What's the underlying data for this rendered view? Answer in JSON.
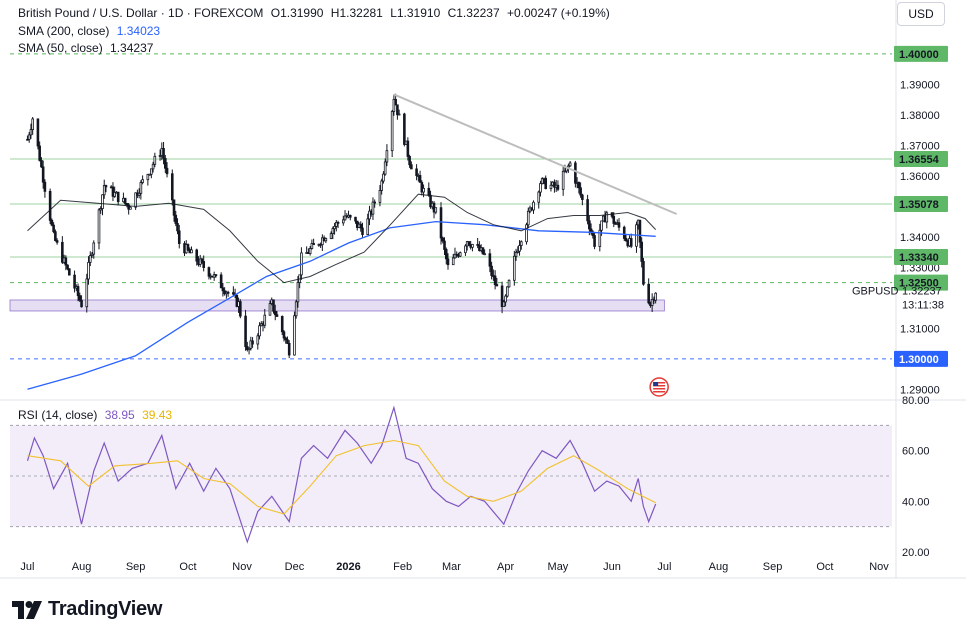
{
  "header": {
    "symbol": "British Pound / U.S. Dollar · 1D · FOREXCOM",
    "open": "O1.31990",
    "high": "H1.32281",
    "low": "L1.31910",
    "close": "C1.32237",
    "change": "+0.00247 (+0.19%)",
    "sma200_label": "SMA (200, close)",
    "sma200_value": "1.34023",
    "sma50_label": "SMA (50, close)",
    "sma50_value": "1.34237",
    "rsi_label": "RSI (14, close)",
    "rsi_value": "38.95",
    "rsi_ma_value": "39.43"
  },
  "currency_button": "USD",
  "brand": "TradingView",
  "colors": {
    "up": "#131722",
    "down": "#131722",
    "sma200": "#2962ff",
    "sma50": "#131722",
    "rsi": "#7e57c2",
    "rsi_ma": "#f2c12e",
    "support_zone": "#d1c4e9",
    "support_line": "#4caf50",
    "last_price_tag": "#131722",
    "level_1_30": "#2962ff",
    "trendline": "#bdbdbd"
  },
  "icons": [
    "us-flag-icon",
    "tradingview-logo-icon"
  ],
  "chart_data": [
    {
      "type": "candlestick",
      "title": "British Pound / U.S. Dollar · 1D · FOREXCOM",
      "ylim": [
        1.2865,
        1.4085
      ],
      "x_months": [
        "Jul",
        "Aug",
        "Sep",
        "Oct",
        "Nov",
        "Dec",
        "2026",
        "Feb",
        "Mar",
        "Apr",
        "May",
        "Jun",
        "Jul",
        "Aug",
        "Sep",
        "Oct",
        "Nov"
      ],
      "y_ticks": [
        "1.39000",
        "1.38000",
        "1.37000",
        "1.36000",
        "1.34000",
        "1.33000",
        "1.31000",
        "1.29000"
      ],
      "horizontal_levels": [
        {
          "label": "1.40000",
          "value": 1.4,
          "style": "dashed",
          "color": "#4caf50"
        },
        {
          "label": "1.36554",
          "value": 1.36554,
          "style": "solid",
          "color": "#4caf50"
        },
        {
          "label": "1.35078",
          "value": 1.35078,
          "style": "solid",
          "color": "#4caf50"
        },
        {
          "label": "1.33340",
          "value": 1.3334,
          "style": "solid",
          "color": "#4caf50"
        },
        {
          "label": "1.32500",
          "value": 1.325,
          "style": "dashed",
          "color": "#4caf50"
        },
        {
          "label": "1.30000",
          "value": 1.3,
          "style": "dashed",
          "color": "#2962ff"
        }
      ],
      "support_zone": [
        1.3157,
        1.3193
      ],
      "last_price": {
        "symbol": "GBPUSD",
        "value": "1.32237",
        "countdown": "13:11:38"
      },
      "trendline": {
        "from": {
          "date": "2026-01-27",
          "value": 1.3867
        },
        "to": {
          "date": "2026-07-08",
          "value": 1.3475
        }
      },
      "key_points": [
        {
          "date": "2025-07-01",
          "close": 1.372
        },
        {
          "date": "2025-07-04",
          "close": 1.379
        },
        {
          "date": "2025-07-16",
          "close": 1.34
        },
        {
          "date": "2025-08-01",
          "close": 1.318
        },
        {
          "date": "2025-08-14",
          "close": 1.357
        },
        {
          "date": "2025-08-28",
          "close": 1.35
        },
        {
          "date": "2025-09-16",
          "close": 1.369
        },
        {
          "date": "2025-09-26",
          "close": 1.338
        },
        {
          "date": "2025-10-14",
          "close": 1.328
        },
        {
          "date": "2025-10-30",
          "close": 1.318
        },
        {
          "date": "2025-11-04",
          "close": 1.302
        },
        {
          "date": "2025-11-18",
          "close": 1.318
        },
        {
          "date": "2025-11-28",
          "close": 1.303
        },
        {
          "date": "2025-12-05",
          "close": 1.333
        },
        {
          "date": "2025-12-16",
          "close": 1.339
        },
        {
          "date": "2025-12-30",
          "close": 1.347
        },
        {
          "date": "2026-01-10",
          "close": 1.342
        },
        {
          "date": "2026-01-20",
          "close": 1.358
        },
        {
          "date": "2026-01-27",
          "close": 1.386
        },
        {
          "date": "2026-02-05",
          "close": 1.365
        },
        {
          "date": "2026-02-12",
          "close": 1.356
        },
        {
          "date": "2026-02-20",
          "close": 1.348
        },
        {
          "date": "2026-02-27",
          "close": 1.33
        },
        {
          "date": "2026-03-10",
          "close": 1.339
        },
        {
          "date": "2026-03-20",
          "close": 1.334
        },
        {
          "date": "2026-03-31",
          "close": 1.317
        },
        {
          "date": "2026-04-07",
          "close": 1.335
        },
        {
          "date": "2026-04-14",
          "close": 1.347
        },
        {
          "date": "2026-04-21",
          "close": 1.358
        },
        {
          "date": "2026-04-30",
          "close": 1.356
        },
        {
          "date": "2026-05-08",
          "close": 1.364
        },
        {
          "date": "2026-05-15",
          "close": 1.352
        },
        {
          "date": "2026-05-22",
          "close": 1.338
        },
        {
          "date": "2026-05-29",
          "close": 1.348
        },
        {
          "date": "2026-06-05",
          "close": 1.343
        },
        {
          "date": "2026-06-12",
          "close": 1.337
        },
        {
          "date": "2026-06-16",
          "close": 1.344
        },
        {
          "date": "2026-06-19",
          "close": 1.325
        },
        {
          "date": "2026-06-23",
          "close": 1.318
        },
        {
          "date": "2026-06-26",
          "close": 1.3224
        }
      ],
      "sma50": [
        {
          "date": "2025-07-01",
          "value": 1.342
        },
        {
          "date": "2025-07-20",
          "value": 1.352
        },
        {
          "date": "2025-08-10",
          "value": 1.351
        },
        {
          "date": "2025-09-01",
          "value": 1.35
        },
        {
          "date": "2025-09-20",
          "value": 1.351
        },
        {
          "date": "2025-10-10",
          "value": 1.349
        },
        {
          "date": "2025-10-25",
          "value": 1.342
        },
        {
          "date": "2025-11-10",
          "value": 1.332
        },
        {
          "date": "2025-11-25",
          "value": 1.325
        },
        {
          "date": "2025-12-10",
          "value": 1.327
        },
        {
          "date": "2025-12-25",
          "value": 1.331
        },
        {
          "date": "2026-01-10",
          "value": 1.335
        },
        {
          "date": "2026-01-25",
          "value": 1.344
        },
        {
          "date": "2026-02-10",
          "value": 1.354
        },
        {
          "date": "2026-02-25",
          "value": 1.353
        },
        {
          "date": "2026-03-10",
          "value": 1.348
        },
        {
          "date": "2026-03-25",
          "value": 1.344
        },
        {
          "date": "2026-04-10",
          "value": 1.342
        },
        {
          "date": "2026-04-25",
          "value": 1.346
        },
        {
          "date": "2026-05-10",
          "value": 1.347
        },
        {
          "date": "2026-05-25",
          "value": 1.347
        },
        {
          "date": "2026-06-10",
          "value": 1.348
        },
        {
          "date": "2026-06-20",
          "value": 1.346
        },
        {
          "date": "2026-06-26",
          "value": 1.3424
        }
      ],
      "sma200": [
        {
          "date": "2025-07-01",
          "value": 1.29
        },
        {
          "date": "2025-08-01",
          "value": 1.295
        },
        {
          "date": "2025-09-01",
          "value": 1.301
        },
        {
          "date": "2025-10-01",
          "value": 1.312
        },
        {
          "date": "2025-10-25",
          "value": 1.32
        },
        {
          "date": "2025-11-15",
          "value": 1.327
        },
        {
          "date": "2025-12-10",
          "value": 1.332
        },
        {
          "date": "2026-01-01",
          "value": 1.338
        },
        {
          "date": "2026-01-25",
          "value": 1.343
        },
        {
          "date": "2026-02-20",
          "value": 1.345
        },
        {
          "date": "2026-03-20",
          "value": 1.344
        },
        {
          "date": "2026-04-20",
          "value": 1.342
        },
        {
          "date": "2026-05-20",
          "value": 1.3415
        },
        {
          "date": "2026-06-26",
          "value": 1.3402
        }
      ]
    },
    {
      "type": "line",
      "title": "RSI (14, close)",
      "ylim": [
        20,
        80
      ],
      "y_ticks": [
        "80.00",
        "60.00",
        "40.00",
        "20.00"
      ],
      "band": [
        30,
        70
      ],
      "midline": 50,
      "series": [
        {
          "name": "RSI (14, close)",
          "color": "#7e57c2",
          "points": [
            {
              "date": "2025-07-01",
              "value": 56
            },
            {
              "date": "2025-07-05",
              "value": 65
            },
            {
              "date": "2025-07-10",
              "value": 58
            },
            {
              "date": "2025-07-16",
              "value": 45
            },
            {
              "date": "2025-07-24",
              "value": 55
            },
            {
              "date": "2025-08-01",
              "value": 31
            },
            {
              "date": "2025-08-08",
              "value": 52
            },
            {
              "date": "2025-08-14",
              "value": 63
            },
            {
              "date": "2025-08-22",
              "value": 48
            },
            {
              "date": "2025-08-30",
              "value": 53
            },
            {
              "date": "2025-09-08",
              "value": 55
            },
            {
              "date": "2025-09-16",
              "value": 66
            },
            {
              "date": "2025-09-24",
              "value": 45
            },
            {
              "date": "2025-10-02",
              "value": 55
            },
            {
              "date": "2025-10-10",
              "value": 44
            },
            {
              "date": "2025-10-17",
              "value": 53
            },
            {
              "date": "2025-10-25",
              "value": 45
            },
            {
              "date": "2025-11-04",
              "value": 24
            },
            {
              "date": "2025-11-10",
              "value": 36
            },
            {
              "date": "2025-11-18",
              "value": 42
            },
            {
              "date": "2025-11-28",
              "value": 32
            },
            {
              "date": "2025-12-05",
              "value": 57
            },
            {
              "date": "2025-12-12",
              "value": 62
            },
            {
              "date": "2025-12-20",
              "value": 57
            },
            {
              "date": "2025-12-30",
              "value": 68
            },
            {
              "date": "2026-01-06",
              "value": 63
            },
            {
              "date": "2026-01-14",
              "value": 55
            },
            {
              "date": "2026-01-20",
              "value": 62
            },
            {
              "date": "2026-01-27",
              "value": 77
            },
            {
              "date": "2026-02-03",
              "value": 57
            },
            {
              "date": "2026-02-10",
              "value": 55
            },
            {
              "date": "2026-02-18",
              "value": 45
            },
            {
              "date": "2026-02-26",
              "value": 40
            },
            {
              "date": "2026-03-05",
              "value": 38
            },
            {
              "date": "2026-03-12",
              "value": 42
            },
            {
              "date": "2026-03-20",
              "value": 40
            },
            {
              "date": "2026-03-31",
              "value": 31
            },
            {
              "date": "2026-04-07",
              "value": 43
            },
            {
              "date": "2026-04-14",
              "value": 52
            },
            {
              "date": "2026-04-22",
              "value": 60
            },
            {
              "date": "2026-04-30",
              "value": 57
            },
            {
              "date": "2026-05-08",
              "value": 64
            },
            {
              "date": "2026-05-15",
              "value": 55
            },
            {
              "date": "2026-05-22",
              "value": 44
            },
            {
              "date": "2026-05-29",
              "value": 48
            },
            {
              "date": "2026-06-05",
              "value": 46
            },
            {
              "date": "2026-06-12",
              "value": 40
            },
            {
              "date": "2026-06-16",
              "value": 49
            },
            {
              "date": "2026-06-19",
              "value": 38
            },
            {
              "date": "2026-06-22",
              "value": 32
            },
            {
              "date": "2026-06-26",
              "value": 38.95
            }
          ]
        },
        {
          "name": "RSI-based MA",
          "color": "#f2c12e",
          "points": [
            {
              "date": "2025-07-01",
              "value": 58
            },
            {
              "date": "2025-07-20",
              "value": 56
            },
            {
              "date": "2025-08-05",
              "value": 46
            },
            {
              "date": "2025-08-20",
              "value": 54
            },
            {
              "date": "2025-09-10",
              "value": 55
            },
            {
              "date": "2025-09-25",
              "value": 56
            },
            {
              "date": "2025-10-10",
              "value": 49
            },
            {
              "date": "2025-10-25",
              "value": 47
            },
            {
              "date": "2025-11-10",
              "value": 38
            },
            {
              "date": "2025-11-25",
              "value": 35
            },
            {
              "date": "2025-12-10",
              "value": 46
            },
            {
              "date": "2025-12-25",
              "value": 58
            },
            {
              "date": "2026-01-10",
              "value": 62
            },
            {
              "date": "2026-01-27",
              "value": 64
            },
            {
              "date": "2026-02-10",
              "value": 62
            },
            {
              "date": "2026-02-25",
              "value": 48
            },
            {
              "date": "2026-03-10",
              "value": 42
            },
            {
              "date": "2026-03-25",
              "value": 40
            },
            {
              "date": "2026-04-10",
              "value": 44
            },
            {
              "date": "2026-04-25",
              "value": 53
            },
            {
              "date": "2026-05-10",
              "value": 58
            },
            {
              "date": "2026-05-25",
              "value": 52
            },
            {
              "date": "2026-06-10",
              "value": 45
            },
            {
              "date": "2026-06-26",
              "value": 39.43
            }
          ]
        }
      ]
    }
  ]
}
